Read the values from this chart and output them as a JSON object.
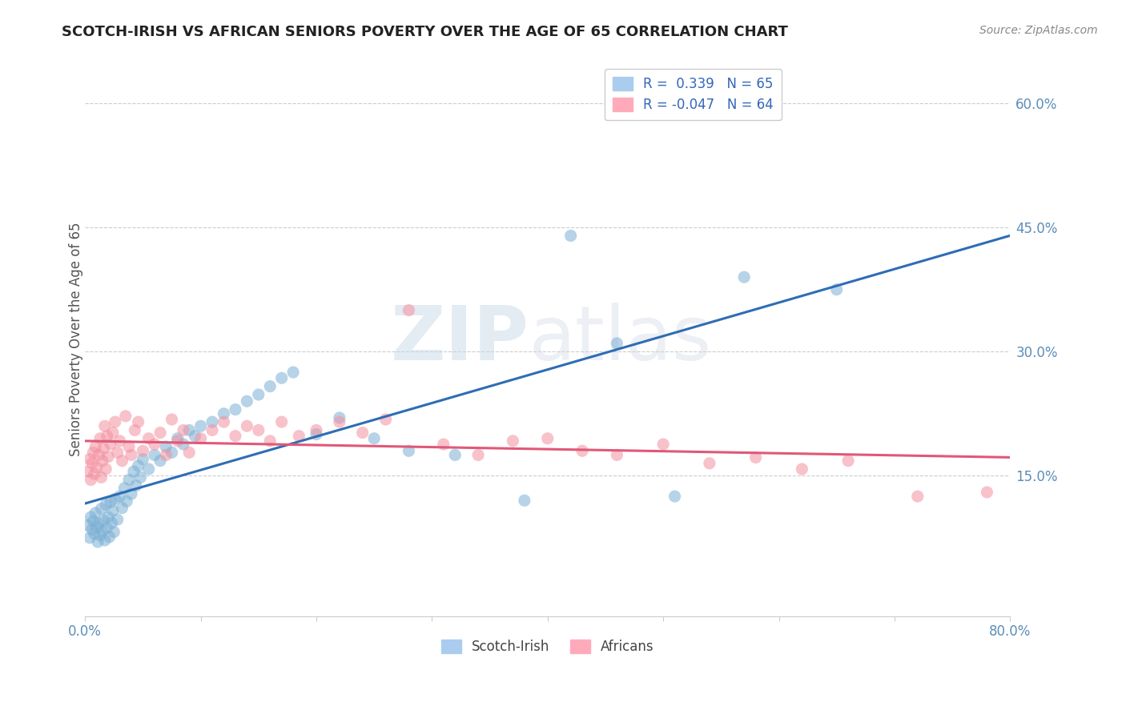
{
  "title": "SCOTCH-IRISH VS AFRICAN SENIORS POVERTY OVER THE AGE OF 65 CORRELATION CHART",
  "source": "Source: ZipAtlas.com",
  "ylabel": "Seniors Poverty Over the Age of 65",
  "xmin": 0.0,
  "xmax": 0.8,
  "ymin": -0.02,
  "ymax": 0.65,
  "yticks": [
    0.15,
    0.3,
    0.45,
    0.6
  ],
  "xticks": [
    0.0,
    0.1,
    0.2,
    0.3,
    0.4,
    0.5,
    0.6,
    0.7,
    0.8
  ],
  "color_blue": "#7BAFD4",
  "color_pink": "#F490A0",
  "color_blue_line": "#2E6DB4",
  "color_pink_line": "#E05878",
  "legend_blue_r": "0.339",
  "legend_blue_n": "65",
  "legend_pink_r": "-0.047",
  "legend_pink_n": "64",
  "watermark_zip": "ZIP",
  "watermark_atlas": "atlas",
  "scotch_irish_x": [
    0.002,
    0.004,
    0.005,
    0.006,
    0.007,
    0.008,
    0.009,
    0.01,
    0.011,
    0.012,
    0.013,
    0.014,
    0.015,
    0.016,
    0.017,
    0.018,
    0.019,
    0.02,
    0.021,
    0.022,
    0.023,
    0.024,
    0.025,
    0.026,
    0.028,
    0.03,
    0.032,
    0.034,
    0.036,
    0.038,
    0.04,
    0.042,
    0.044,
    0.046,
    0.048,
    0.05,
    0.055,
    0.06,
    0.065,
    0.07,
    0.075,
    0.08,
    0.085,
    0.09,
    0.095,
    0.1,
    0.11,
    0.12,
    0.13,
    0.14,
    0.15,
    0.16,
    0.17,
    0.18,
    0.2,
    0.22,
    0.25,
    0.28,
    0.32,
    0.38,
    0.42,
    0.46,
    0.51,
    0.57,
    0.65
  ],
  "scotch_irish_y": [
    0.09,
    0.075,
    0.1,
    0.085,
    0.095,
    0.08,
    0.105,
    0.088,
    0.07,
    0.092,
    0.078,
    0.11,
    0.083,
    0.096,
    0.072,
    0.115,
    0.087,
    0.1,
    0.076,
    0.118,
    0.093,
    0.108,
    0.082,
    0.122,
    0.097,
    0.125,
    0.111,
    0.135,
    0.119,
    0.145,
    0.128,
    0.155,
    0.138,
    0.162,
    0.148,
    0.17,
    0.158,
    0.175,
    0.168,
    0.185,
    0.178,
    0.195,
    0.188,
    0.205,
    0.198,
    0.21,
    0.215,
    0.225,
    0.23,
    0.24,
    0.248,
    0.258,
    0.268,
    0.275,
    0.2,
    0.22,
    0.195,
    0.18,
    0.175,
    0.12,
    0.44,
    0.31,
    0.125,
    0.39,
    0.375
  ],
  "africans_x": [
    0.002,
    0.004,
    0.005,
    0.006,
    0.007,
    0.008,
    0.009,
    0.01,
    0.012,
    0.013,
    0.014,
    0.015,
    0.016,
    0.017,
    0.018,
    0.019,
    0.02,
    0.022,
    0.024,
    0.026,
    0.028,
    0.03,
    0.032,
    0.035,
    0.038,
    0.04,
    0.043,
    0.046,
    0.05,
    0.055,
    0.06,
    0.065,
    0.07,
    0.075,
    0.08,
    0.085,
    0.09,
    0.1,
    0.11,
    0.12,
    0.13,
    0.14,
    0.15,
    0.16,
    0.17,
    0.185,
    0.2,
    0.22,
    0.24,
    0.26,
    0.28,
    0.31,
    0.34,
    0.37,
    0.4,
    0.43,
    0.46,
    0.5,
    0.54,
    0.58,
    0.62,
    0.66,
    0.72,
    0.78
  ],
  "africans_y": [
    0.155,
    0.17,
    0.145,
    0.165,
    0.178,
    0.152,
    0.185,
    0.16,
    0.175,
    0.195,
    0.148,
    0.168,
    0.183,
    0.21,
    0.158,
    0.198,
    0.173,
    0.188,
    0.202,
    0.215,
    0.178,
    0.192,
    0.168,
    0.222,
    0.185,
    0.175,
    0.205,
    0.215,
    0.18,
    0.195,
    0.188,
    0.202,
    0.175,
    0.218,
    0.192,
    0.205,
    0.178,
    0.195,
    0.205,
    0.215,
    0.198,
    0.21,
    0.205,
    0.192,
    0.215,
    0.198,
    0.205,
    0.215,
    0.202,
    0.218,
    0.35,
    0.188,
    0.175,
    0.192,
    0.195,
    0.18,
    0.175,
    0.188,
    0.165,
    0.172,
    0.158,
    0.168,
    0.125,
    0.13
  ]
}
